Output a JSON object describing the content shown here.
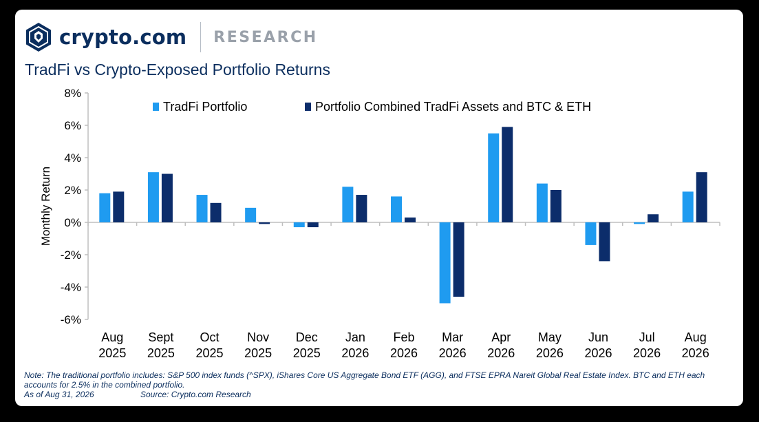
{
  "header": {
    "brand": "crypto.com",
    "section": "RESEARCH",
    "title": "TradFi vs Crypto-Exposed Portfolio Returns"
  },
  "colors": {
    "tradfi": "#1f9bf0",
    "combined": "#0c2d6b",
    "title": "#0b2e5e",
    "axis": "#bfbfbf"
  },
  "chart_data": {
    "type": "bar",
    "ylabel": "Monthly Return",
    "xlabel": "",
    "ylim": [
      -6,
      8
    ],
    "yticks": [
      "-6%",
      "-4%",
      "-2%",
      "0%",
      "2%",
      "4%",
      "6%",
      "8%"
    ],
    "ytick_values": [
      -6,
      -4,
      -2,
      0,
      2,
      4,
      6,
      8
    ],
    "grid": false,
    "legend_position": "top",
    "categories": [
      [
        "Aug",
        "2025"
      ],
      [
        "Sept",
        "2025"
      ],
      [
        "Oct",
        "2025"
      ],
      [
        "Nov",
        "2025"
      ],
      [
        "Dec",
        "2025"
      ],
      [
        "Jan",
        "2026"
      ],
      [
        "Feb",
        "2026"
      ],
      [
        "Mar",
        "2026"
      ],
      [
        "Apr",
        "2026"
      ],
      [
        "May",
        "2026"
      ],
      [
        "Jun",
        "2026"
      ],
      [
        "Jul",
        "2026"
      ],
      [
        "Aug",
        "2026"
      ]
    ],
    "series": [
      {
        "name": "TradFi Portfolio",
        "color": "#1f9bf0",
        "values": [
          1.8,
          3.1,
          1.7,
          0.9,
          -0.3,
          2.2,
          1.6,
          -5.0,
          5.5,
          2.4,
          -1.4,
          -0.1,
          1.9
        ]
      },
      {
        "name": "Portfolio Combined TradFi Assets and BTC & ETH",
        "color": "#0c2d6b",
        "values": [
          1.9,
          3.0,
          1.2,
          -0.1,
          -0.3,
          1.7,
          0.3,
          -4.6,
          5.9,
          2.0,
          -2.4,
          0.5,
          3.1
        ]
      }
    ]
  },
  "footnote": {
    "note": "Note: The traditional portfolio includes: S&P 500 index funds (^SPX), iShares Core US Aggregate Bond ETF (AGG), and FTSE EPRA Nareit Global Real Estate Index. BTC and ETH each accounts for 2.5% in the combined portfolio.",
    "as_of": "As of Aug 31, 2026",
    "source": "Source: Crypto.com Research"
  }
}
